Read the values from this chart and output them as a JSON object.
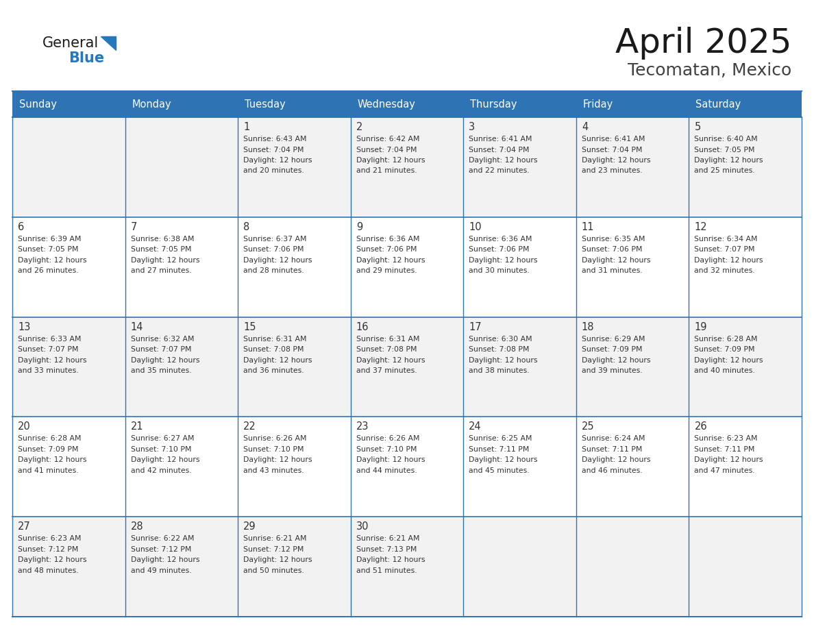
{
  "title": "April 2025",
  "subtitle": "Tecomatan, Mexico",
  "days_of_week": [
    "Sunday",
    "Monday",
    "Tuesday",
    "Wednesday",
    "Thursday",
    "Friday",
    "Saturday"
  ],
  "header_bg_color": "#2E74B5",
  "header_text_color": "#FFFFFF",
  "row_bg_colors": [
    "#F2F2F2",
    "#FFFFFF",
    "#F2F2F2",
    "#FFFFFF",
    "#F2F2F2"
  ],
  "cell_border_color": "#2E74B5",
  "title_color": "#1A1A1A",
  "subtitle_color": "#404040",
  "logo_general_color": "#1A1A1A",
  "logo_blue_color": "#2479BD",
  "text_color": "#333333",
  "calendar_data": [
    [
      {
        "day": "",
        "sunrise": "",
        "sunset": "",
        "daylight": ""
      },
      {
        "day": "",
        "sunrise": "",
        "sunset": "",
        "daylight": ""
      },
      {
        "day": "1",
        "sunrise": "6:43 AM",
        "sunset": "7:04 PM",
        "daylight": "12 hours and 20 minutes."
      },
      {
        "day": "2",
        "sunrise": "6:42 AM",
        "sunset": "7:04 PM",
        "daylight": "12 hours and 21 minutes."
      },
      {
        "day": "3",
        "sunrise": "6:41 AM",
        "sunset": "7:04 PM",
        "daylight": "12 hours and 22 minutes."
      },
      {
        "day": "4",
        "sunrise": "6:41 AM",
        "sunset": "7:04 PM",
        "daylight": "12 hours and 23 minutes."
      },
      {
        "day": "5",
        "sunrise": "6:40 AM",
        "sunset": "7:05 PM",
        "daylight": "12 hours and 25 minutes."
      }
    ],
    [
      {
        "day": "6",
        "sunrise": "6:39 AM",
        "sunset": "7:05 PM",
        "daylight": "12 hours and 26 minutes."
      },
      {
        "day": "7",
        "sunrise": "6:38 AM",
        "sunset": "7:05 PM",
        "daylight": "12 hours and 27 minutes."
      },
      {
        "day": "8",
        "sunrise": "6:37 AM",
        "sunset": "7:06 PM",
        "daylight": "12 hours and 28 minutes."
      },
      {
        "day": "9",
        "sunrise": "6:36 AM",
        "sunset": "7:06 PM",
        "daylight": "12 hours and 29 minutes."
      },
      {
        "day": "10",
        "sunrise": "6:36 AM",
        "sunset": "7:06 PM",
        "daylight": "12 hours and 30 minutes."
      },
      {
        "day": "11",
        "sunrise": "6:35 AM",
        "sunset": "7:06 PM",
        "daylight": "12 hours and 31 minutes."
      },
      {
        "day": "12",
        "sunrise": "6:34 AM",
        "sunset": "7:07 PM",
        "daylight": "12 hours and 32 minutes."
      }
    ],
    [
      {
        "day": "13",
        "sunrise": "6:33 AM",
        "sunset": "7:07 PM",
        "daylight": "12 hours and 33 minutes."
      },
      {
        "day": "14",
        "sunrise": "6:32 AM",
        "sunset": "7:07 PM",
        "daylight": "12 hours and 35 minutes."
      },
      {
        "day": "15",
        "sunrise": "6:31 AM",
        "sunset": "7:08 PM",
        "daylight": "12 hours and 36 minutes."
      },
      {
        "day": "16",
        "sunrise": "6:31 AM",
        "sunset": "7:08 PM",
        "daylight": "12 hours and 37 minutes."
      },
      {
        "day": "17",
        "sunrise": "6:30 AM",
        "sunset": "7:08 PM",
        "daylight": "12 hours and 38 minutes."
      },
      {
        "day": "18",
        "sunrise": "6:29 AM",
        "sunset": "7:09 PM",
        "daylight": "12 hours and 39 minutes."
      },
      {
        "day": "19",
        "sunrise": "6:28 AM",
        "sunset": "7:09 PM",
        "daylight": "12 hours and 40 minutes."
      }
    ],
    [
      {
        "day": "20",
        "sunrise": "6:28 AM",
        "sunset": "7:09 PM",
        "daylight": "12 hours and 41 minutes."
      },
      {
        "day": "21",
        "sunrise": "6:27 AM",
        "sunset": "7:10 PM",
        "daylight": "12 hours and 42 minutes."
      },
      {
        "day": "22",
        "sunrise": "6:26 AM",
        "sunset": "7:10 PM",
        "daylight": "12 hours and 43 minutes."
      },
      {
        "day": "23",
        "sunrise": "6:26 AM",
        "sunset": "7:10 PM",
        "daylight": "12 hours and 44 minutes."
      },
      {
        "day": "24",
        "sunrise": "6:25 AM",
        "sunset": "7:11 PM",
        "daylight": "12 hours and 45 minutes."
      },
      {
        "day": "25",
        "sunrise": "6:24 AM",
        "sunset": "7:11 PM",
        "daylight": "12 hours and 46 minutes."
      },
      {
        "day": "26",
        "sunrise": "6:23 AM",
        "sunset": "7:11 PM",
        "daylight": "12 hours and 47 minutes."
      }
    ],
    [
      {
        "day": "27",
        "sunrise": "6:23 AM",
        "sunset": "7:12 PM",
        "daylight": "12 hours and 48 minutes."
      },
      {
        "day": "28",
        "sunrise": "6:22 AM",
        "sunset": "7:12 PM",
        "daylight": "12 hours and 49 minutes."
      },
      {
        "day": "29",
        "sunrise": "6:21 AM",
        "sunset": "7:12 PM",
        "daylight": "12 hours and 50 minutes."
      },
      {
        "day": "30",
        "sunrise": "6:21 AM",
        "sunset": "7:13 PM",
        "daylight": "12 hours and 51 minutes."
      },
      {
        "day": "",
        "sunrise": "",
        "sunset": "",
        "daylight": ""
      },
      {
        "day": "",
        "sunrise": "",
        "sunset": "",
        "daylight": ""
      },
      {
        "day": "",
        "sunrise": "",
        "sunset": "",
        "daylight": ""
      }
    ]
  ]
}
